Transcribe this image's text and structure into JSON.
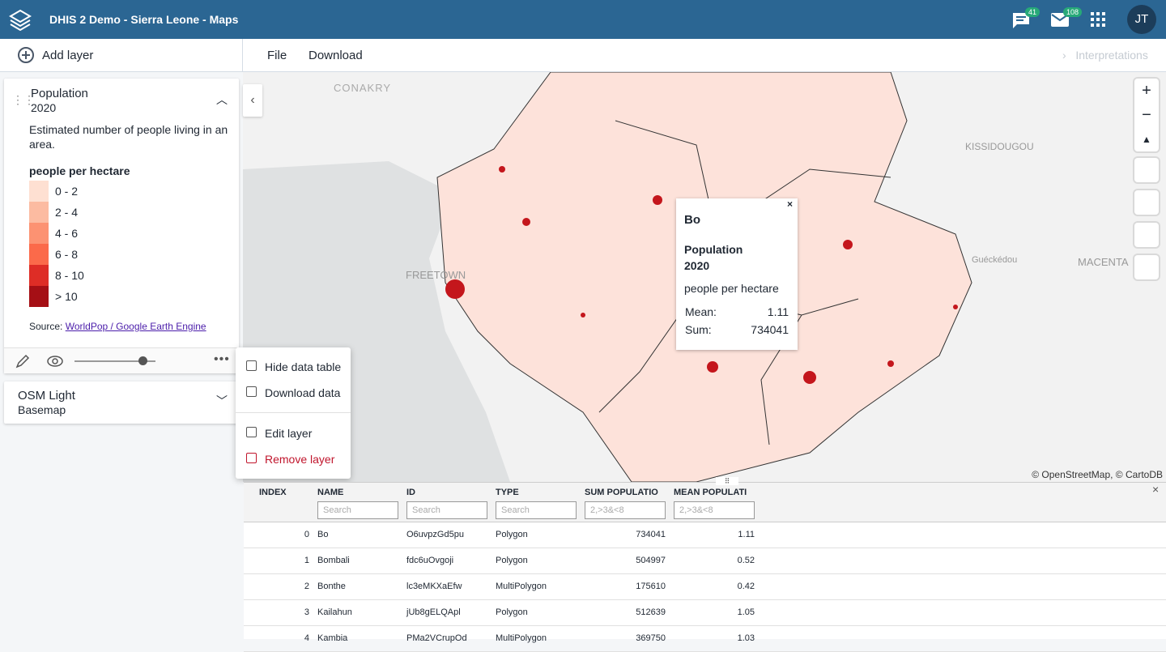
{
  "header": {
    "title": "DHIS 2 Demo - Sierra Leone - Maps",
    "messages_badge": "41",
    "mail_badge": "108",
    "avatar": "JT"
  },
  "toolbar": {
    "add_layer": "Add layer",
    "menu": [
      "File",
      "Download"
    ],
    "interpretations": "Interpretations"
  },
  "layers": [
    {
      "title": "Population",
      "period": "2020",
      "description": "Estimated number of people living in an area.",
      "legend_title": "people per hectare",
      "legend": [
        {
          "label": "0 - 2",
          "color": "#fee0d2"
        },
        {
          "label": "2 - 4",
          "color": "#fcbba1"
        },
        {
          "label": "4 - 6",
          "color": "#fc9272"
        },
        {
          "label": "6 - 8",
          "color": "#fb6a4a"
        },
        {
          "label": "8 - 10",
          "color": "#de2d26"
        },
        {
          "label": "> 10",
          "color": "#a50f15"
        }
      ],
      "source_label": "Source:",
      "source_link": "WorldPop / Google Earth Engine"
    },
    {
      "title": "OSM Light",
      "subtitle": "Basemap"
    }
  ],
  "context_menu": [
    "Hide data table",
    "Download data",
    "Edit layer",
    "Remove layer"
  ],
  "map": {
    "labels": [
      "CONAKRY",
      "KISSIDOUGOU",
      "Guéckédou",
      "MACENTA",
      "FREETOWN"
    ],
    "attribution": "© OpenStreetMap, © CartoDB"
  },
  "popup": {
    "title": "Bo",
    "layer": "Population",
    "period": "2020",
    "unit": "people per hectare",
    "rows": [
      [
        "Mean:",
        "1.11"
      ],
      [
        "Sum:",
        "734041"
      ]
    ]
  },
  "table": {
    "columns": [
      "INDEX",
      "NAME",
      "ID",
      "TYPE",
      "SUM POPULATIO",
      "MEAN POPULATI"
    ],
    "filters": [
      "Search",
      "Search",
      "Search",
      "2,>3&<8",
      "2,>3&<8"
    ],
    "rows": [
      [
        0,
        "Bo",
        "O6uvpzGd5pu",
        "Polygon",
        734041,
        1.11
      ],
      [
        1,
        "Bombali",
        "fdc6uOvgoji",
        "Polygon",
        504997,
        0.52
      ],
      [
        2,
        "Bonthe",
        "lc3eMKXaEfw",
        "MultiPolygon",
        175610,
        0.42
      ],
      [
        3,
        "Kailahun",
        "jUb8gELQApl",
        "Polygon",
        512639,
        1.05
      ],
      [
        4,
        "Kambia",
        "PMa2VCrupOd",
        "MultiPolygon",
        369750,
        1.03
      ]
    ]
  }
}
